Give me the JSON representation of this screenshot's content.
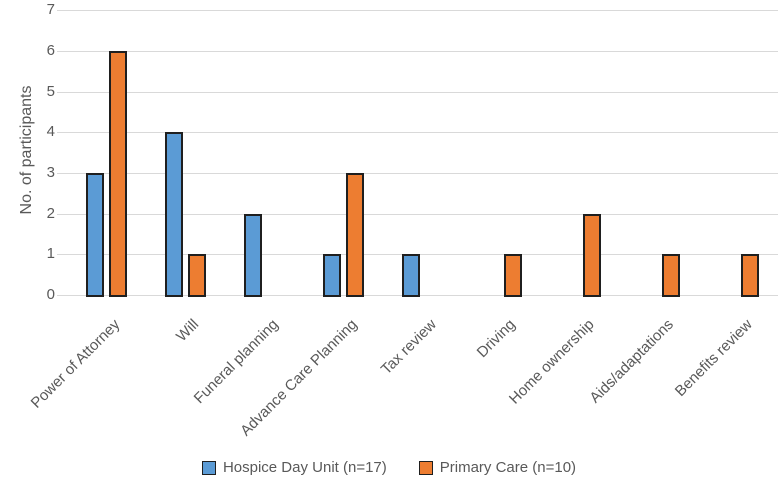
{
  "chart_data": {
    "type": "bar",
    "title": "",
    "xlabel": "",
    "ylabel": "No. of participants",
    "categories": [
      "Power of Attorney",
      "Will",
      "Funeral planning",
      "Advance Care Planning",
      "Tax review",
      "Driving",
      "Home ownership",
      "Aids/adaptations",
      "Benefits review"
    ],
    "series": [
      {
        "name": "Hospice Day Unit (n=17)",
        "color": "#5B9BD5",
        "values": [
          3,
          4,
          2,
          1,
          1,
          0,
          0,
          0,
          0
        ]
      },
      {
        "name": "Primary Care (n=10)",
        "color": "#ED7D31",
        "values": [
          6,
          1,
          0,
          3,
          0,
          1,
          2,
          1,
          1
        ]
      }
    ],
    "ylim": [
      0,
      7
    ],
    "yticks": [
      0,
      1,
      2,
      3,
      4,
      5,
      6,
      7
    ],
    "grid": true,
    "legend_position": "bottom",
    "colors": {
      "bar_border": "#1F1F1F",
      "gridline": "#D9D9D9",
      "text": "#595959",
      "background": "#FFFFFF"
    }
  }
}
